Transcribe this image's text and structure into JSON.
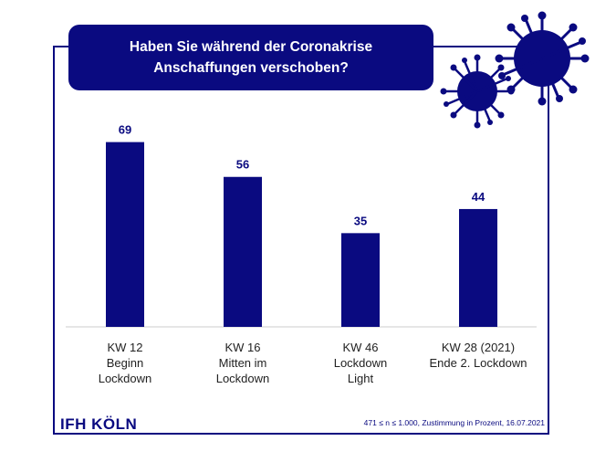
{
  "title": "Haben Sie während der Coronakrise Anschaffungen verschoben?",
  "logo": "IFH KÖLN",
  "footnote": "471 ≤ n ≤ 1.000, Zustimmung in Prozent, 16.07.2021",
  "colors": {
    "accent": "#0a0a80",
    "axis": "#cccccc",
    "label": "#222222"
  },
  "chart_data": {
    "type": "bar",
    "categories": [
      "KW 12\nBeginn\nLockdown",
      "KW 16\nMitten im\nLockdown",
      "KW 46\nLockdown\nLight",
      "KW 28 (2021)\nEnde 2. Lockdown"
    ],
    "values": [
      69,
      56,
      35,
      44
    ],
    "data_labels": [
      "69",
      "56",
      "35",
      "44"
    ],
    "title": "Haben Sie während der Coronakrise Anschaffungen verschoben?",
    "xlabel": "",
    "ylabel": "",
    "ylim": [
      0,
      100
    ],
    "grid": false,
    "legend": "none"
  }
}
